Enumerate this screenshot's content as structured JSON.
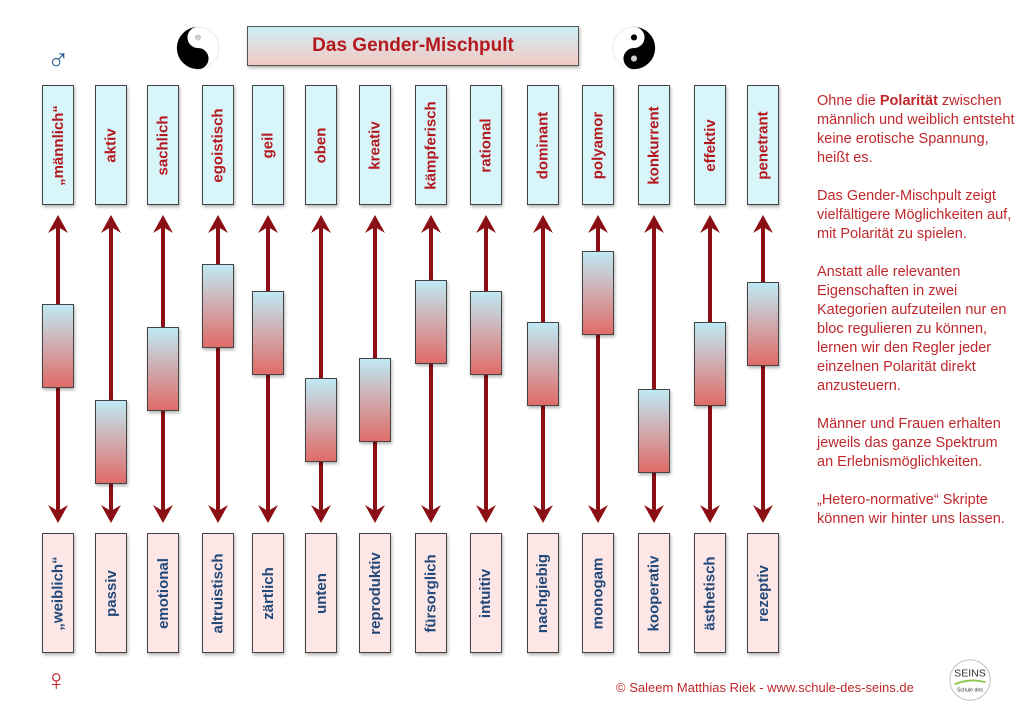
{
  "title": "Das Gender-Mischpult",
  "male_symbol": "♂",
  "female_symbol": "♀",
  "colors": {
    "accent_red": "#b3191f",
    "arrow": "#8b0f14",
    "blue_text": "#23497a"
  },
  "columns": [
    {
      "top": "„männlich“",
      "bottom": "„weiblich“",
      "slider": 0.4
    },
    {
      "top": "aktiv",
      "bottom": "passiv",
      "slider": 0.83
    },
    {
      "top": "sachlich",
      "bottom": "emotional",
      "slider": 0.5
    },
    {
      "top": "egoistisch",
      "bottom": "altruistisch",
      "slider": 0.22
    },
    {
      "top": "geil",
      "bottom": "zärtlich",
      "slider": 0.34
    },
    {
      "top": "oben",
      "bottom": "unten",
      "slider": 0.73
    },
    {
      "top": "kreativ",
      "bottom": "reproduktiv",
      "slider": 0.64
    },
    {
      "top": "kämpferisch",
      "bottom": "fürsorglich",
      "slider": 0.29
    },
    {
      "top": "rational",
      "bottom": "intuitiv",
      "slider": 0.34
    },
    {
      "top": "dominant",
      "bottom": "nachgiebig",
      "slider": 0.48
    },
    {
      "top": "polyamor",
      "bottom": "monogam",
      "slider": 0.16
    },
    {
      "top": "konkurrent",
      "bottom": "kooperativ",
      "slider": 0.78
    },
    {
      "top": "effektiv",
      "bottom": "ästhetisch",
      "slider": 0.48
    },
    {
      "top": "penetrant",
      "bottom": "rezeptiv",
      "slider": 0.3
    }
  ],
  "side": {
    "p1_pre": "Ohne die ",
    "p1_bold": "Polarität",
    "p1_post": " zwischen männlich und weiblich entsteht keine erotische Spannung, heißt es.",
    "p2": "Das Gender-Mischpult zeigt vielfältigere Möglichkeiten auf, mit Polarität zu spielen.",
    "p3": "Anstatt alle relevanten Eigenschaften in zwei Kategorien aufzuteilen nur en bloc regulieren zu können, lernen wir den Regler jeder einzelnen Polarität direkt anzusteuern.",
    "p4": "Männer und Frauen erhalten jeweils das ganze Spektrum an Erlebnismöglichkeiten.",
    "p5": "„Hetero-normative“ Skripte können wir hinter uns lassen."
  },
  "footer": "© Saleem Matthias Riek - www.schule-des-seins.de",
  "logo_text": "SEINS Schule des"
}
